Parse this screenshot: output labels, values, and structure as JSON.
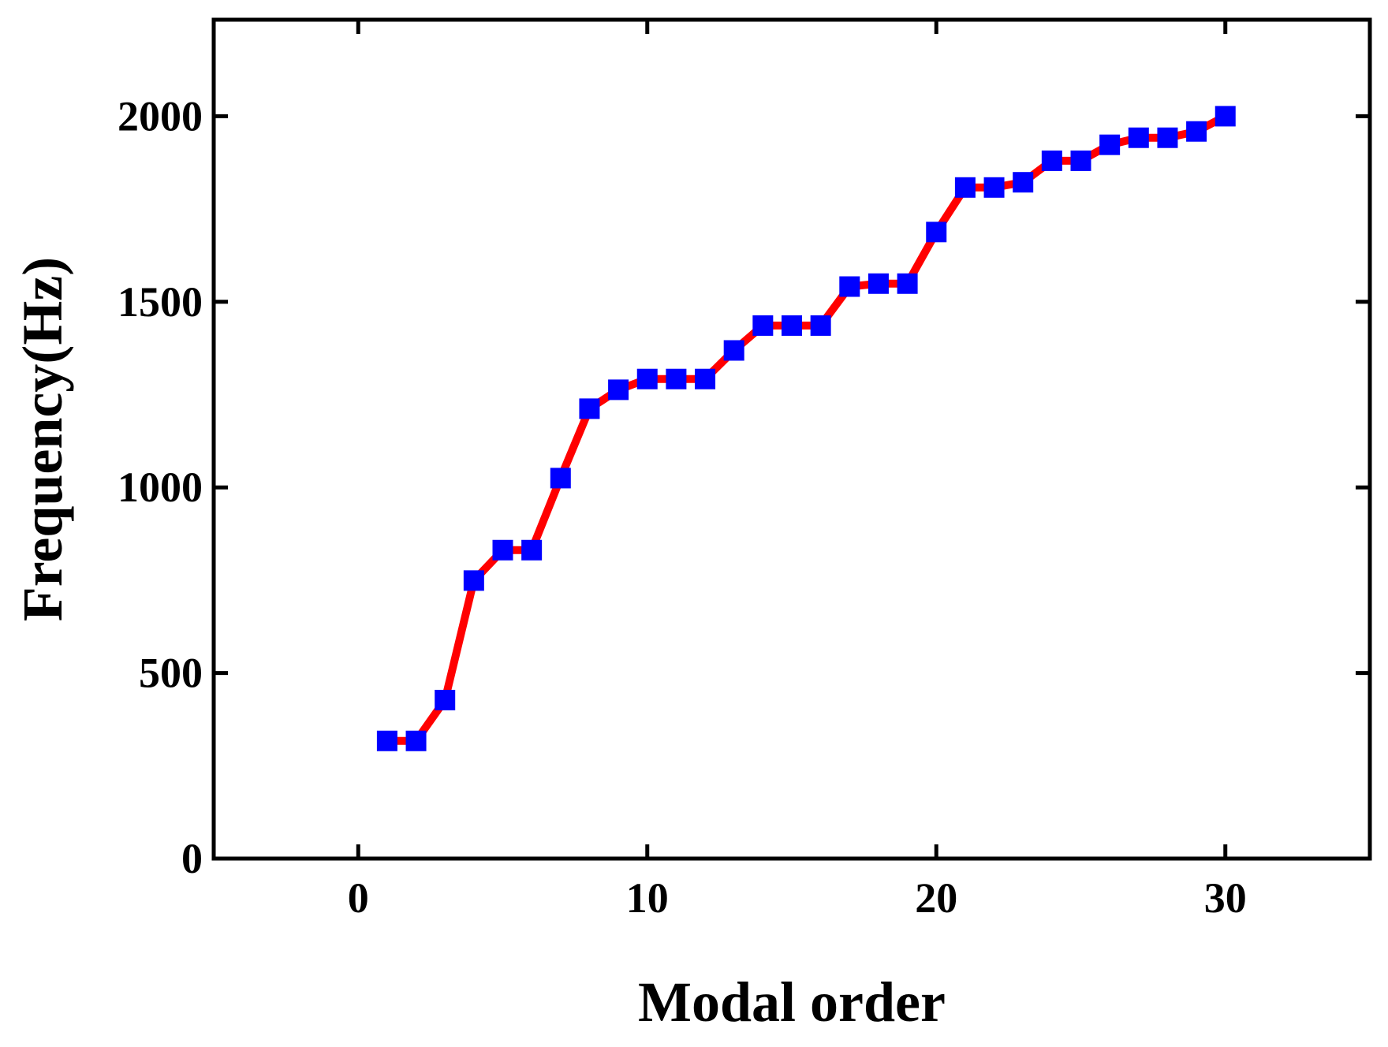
{
  "chart_data": {
    "type": "line",
    "xlabel": "Modal order",
    "ylabel": "Frequency(Hz)",
    "x": [
      1,
      2,
      3,
      4,
      5,
      6,
      7,
      8,
      9,
      10,
      11,
      12,
      13,
      14,
      15,
      16,
      17,
      18,
      19,
      20,
      21,
      22,
      23,
      24,
      25,
      26,
      27,
      28,
      29,
      30
    ],
    "series": [
      {
        "color": "#ff0000",
        "marker_color": "#0000ff",
        "values": [
          317,
          317,
          427,
          749,
          831,
          831,
          1025,
          1212,
          1263,
          1292,
          1292,
          1292,
          1369,
          1436,
          1436,
          1436,
          1541,
          1549,
          1549,
          1688,
          1808,
          1808,
          1822,
          1880,
          1880,
          1923,
          1942,
          1942,
          1959,
          2000
        ]
      }
    ],
    "xlim": [
      -5,
      35
    ],
    "xticks": [
      0,
      10,
      20,
      30
    ],
    "ylim": [
      0,
      2260
    ],
    "yticks": [
      0,
      500,
      1000,
      1500,
      2000
    ]
  }
}
